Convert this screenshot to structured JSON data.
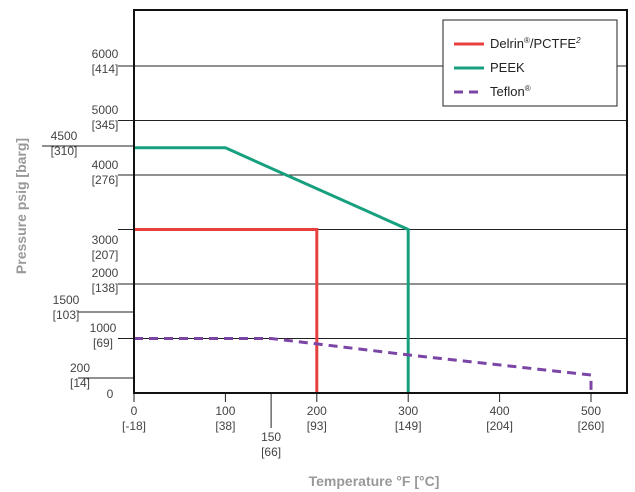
{
  "chart_data": {
    "type": "line",
    "xlabel": "Temperature °F [°C]",
    "ylabel": "Pressure psig [barg]",
    "xlim": [
      0,
      520
    ],
    "ylim": [
      -100,
      7100
    ],
    "x_ticks": [
      {
        "value": 0,
        "f": "0",
        "c": "[-18]"
      },
      {
        "value": 100,
        "f": "100",
        "c": "[38]"
      },
      {
        "value": 150,
        "f": "150",
        "c": "[66]"
      },
      {
        "value": 200,
        "f": "200",
        "c": "[93]"
      },
      {
        "value": 300,
        "f": "300",
        "c": "[149]"
      },
      {
        "value": 400,
        "f": "400",
        "c": "[204]"
      },
      {
        "value": 500,
        "f": "500",
        "c": "[260]"
      }
    ],
    "y_ticks": [
      {
        "value": 0,
        "psi": "0",
        "bar": ""
      },
      {
        "value": 200,
        "psi": "200",
        "bar": "[14]"
      },
      {
        "value": 1000,
        "psi": "1000",
        "bar": "[69]"
      },
      {
        "value": 1500,
        "psi": "1500",
        "bar": "[103]"
      },
      {
        "value": 2000,
        "psi": "2000",
        "bar": "[138]"
      },
      {
        "value": 3000,
        "psi": "3000",
        "bar": "[207]"
      },
      {
        "value": 4000,
        "psi": "4000",
        "bar": "[276]"
      },
      {
        "value": 4500,
        "psi": "4500",
        "bar": "[310]"
      },
      {
        "value": 5000,
        "psi": "5000",
        "bar": "[345]"
      },
      {
        "value": 6000,
        "psi": "6000",
        "bar": "[414]"
      }
    ],
    "series": [
      {
        "name": "Delrin®/PCTFE²",
        "legend_base": "Delrin",
        "legend_mid": "/PCTFE",
        "legend_sup1": "®",
        "legend_sup2": "2",
        "color": "#e8403f",
        "dash": "solid",
        "points": [
          [
            0,
            3000
          ],
          [
            200,
            3000
          ],
          [
            200,
            0
          ]
        ]
      },
      {
        "name": "PEEK",
        "legend_base": "PEEK",
        "legend_mid": "",
        "legend_sup1": "",
        "legend_sup2": "",
        "color": "#16a07e",
        "dash": "solid",
        "points": [
          [
            0,
            4500
          ],
          [
            100,
            4500
          ],
          [
            300,
            3000
          ],
          [
            300,
            0
          ]
        ]
      },
      {
        "name": "Teflon®",
        "legend_base": "Teflon",
        "legend_mid": "",
        "legend_sup1": "®",
        "legend_sup2": "",
        "color": "#7b45a5",
        "dash": "dashed",
        "points": [
          [
            0,
            1000
          ],
          [
            150,
            1000
          ],
          [
            200,
            900
          ],
          [
            300,
            700
          ],
          [
            500,
            330
          ],
          [
            500,
            0
          ]
        ]
      }
    ],
    "grid": true,
    "legend": "top-right"
  }
}
